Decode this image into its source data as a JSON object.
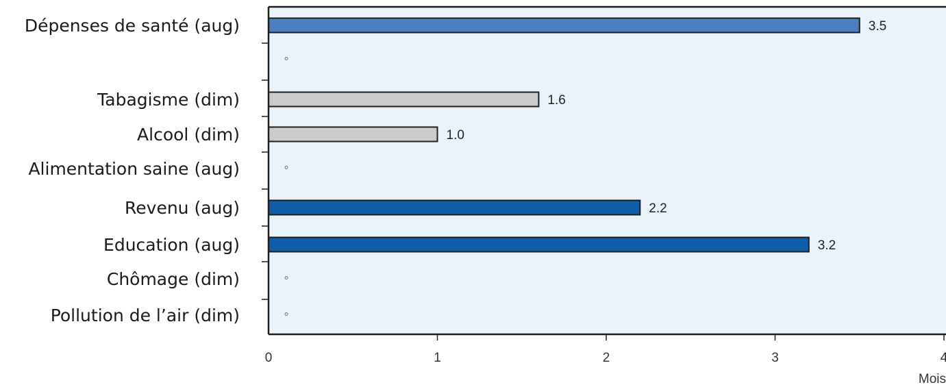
{
  "chart_data": {
    "type": "bar",
    "orientation": "horizontal",
    "categories": [
      "Dépenses de santé (aug)",
      "",
      "Tabagisme (dim)",
      "Alcool (dim)",
      "Alimentation saine (aug)",
      "Revenu (aug)",
      "Education (aug)",
      "Chômage (dim)",
      "Pollution de l’air (dim)"
    ],
    "values": [
      3.5,
      null,
      1.6,
      1.0,
      null,
      2.2,
      3.2,
      null,
      null
    ],
    "data_labels": [
      "3.5",
      "",
      "1.6",
      "1.0",
      "",
      "2.2",
      "3.2",
      "",
      ""
    ],
    "bar_colors": [
      "#4d7ec1",
      null,
      "#cbcbcb",
      "#cbcbcb",
      null,
      "#0e5fa8",
      "#0e5fa8",
      null,
      null
    ],
    "missing_marker": "°",
    "xlim": [
      0,
      4
    ],
    "xticks": [
      "0",
      "1",
      "2",
      "3",
      "4"
    ],
    "xlabel": "Mois",
    "ylabel": "",
    "title": "",
    "grid": false,
    "plot_background": "#e9f3f9",
    "colors": {
      "axis": "#1e1e1e",
      "bar_outline": "#1e1e1e",
      "marker": "#777777"
    }
  }
}
